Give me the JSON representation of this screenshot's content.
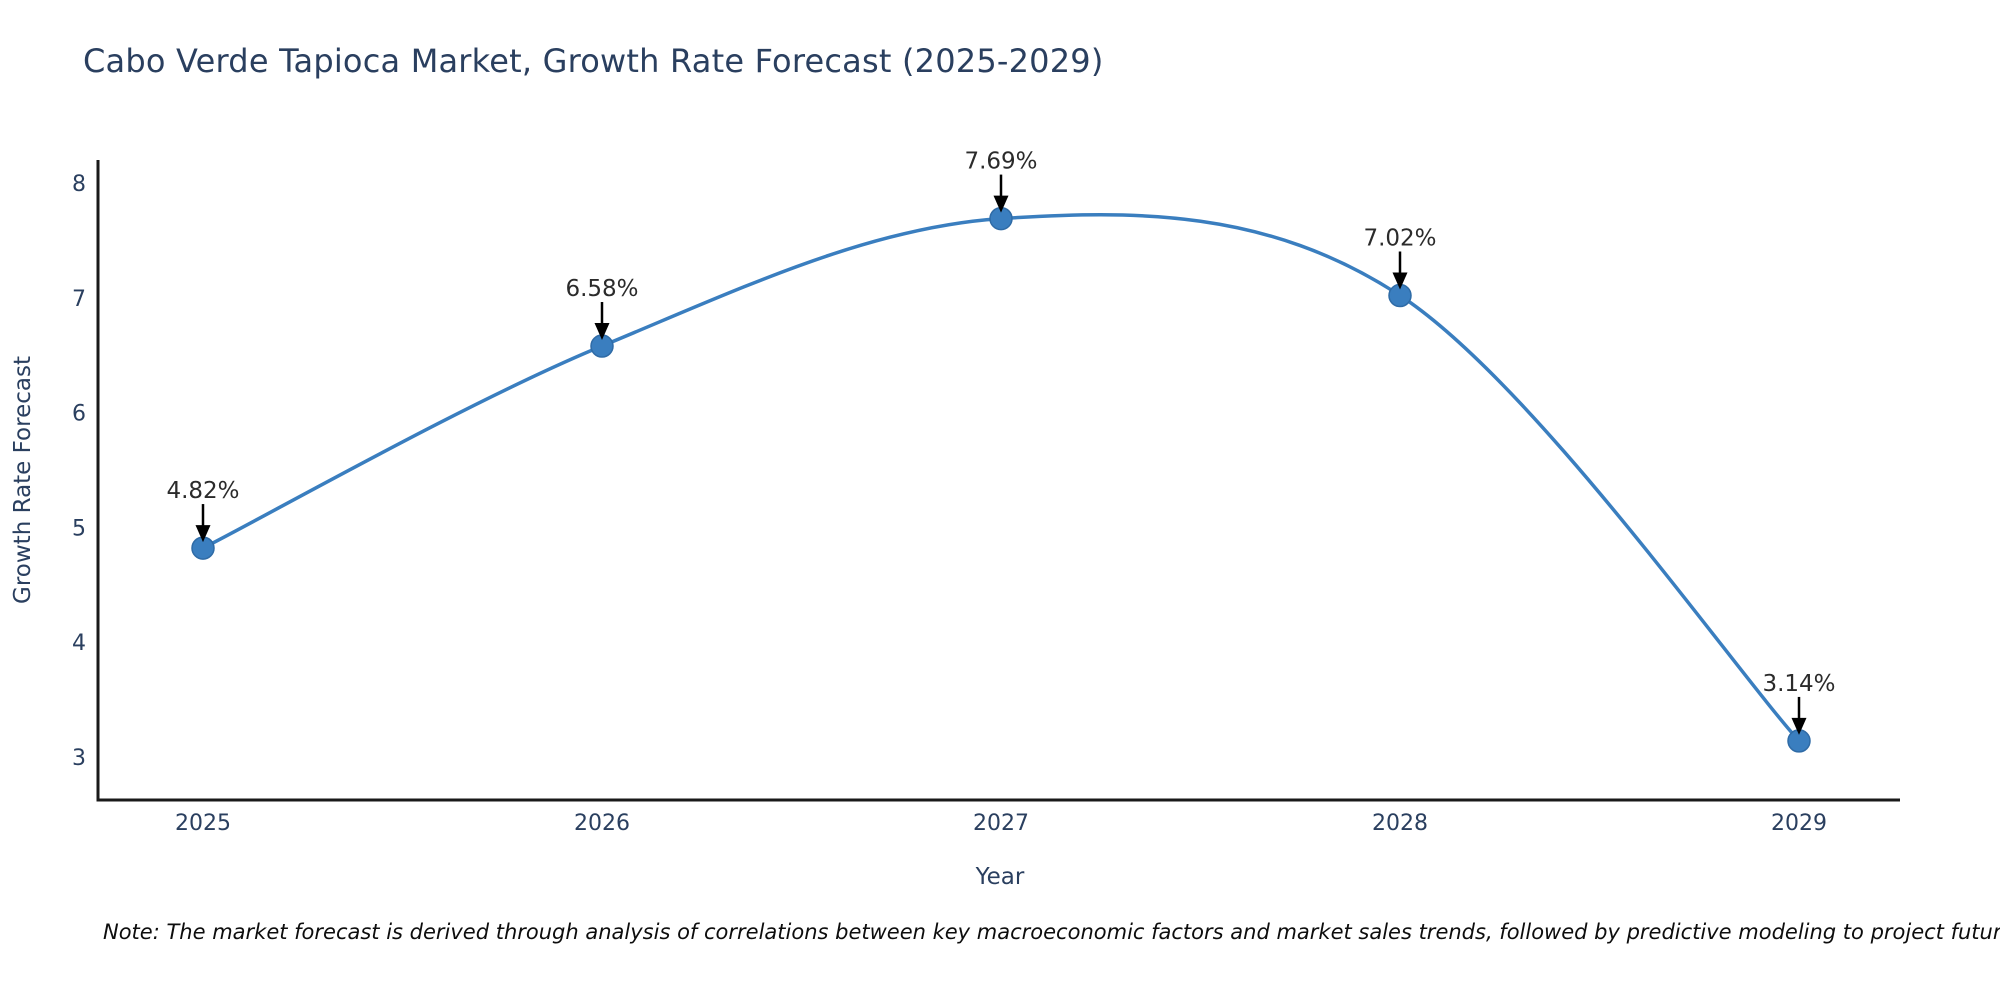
{
  "title": "Cabo Verde Tapioca Market, Growth Rate Forecast (2025-2029)",
  "note": "Note: The market forecast is derived through analysis of correlations between key macroeconomic factors and market sales trends, followed by predictive modeling to project future sales.",
  "colors": {
    "line": "#3a7ebf",
    "marker_fill": "#3a7ebf",
    "marker_edge": "#2f6ba6",
    "axis_line": "#1a1a1a",
    "tick_text": "#2a3f5f",
    "annotation_text": "#2b2b2b",
    "arrow": "#000000",
    "background": "#ffffff"
  },
  "chart_data": {
    "type": "line",
    "title": "Cabo Verde Tapioca Market, Growth Rate Forecast (2025-2029)",
    "categories": [
      "2025",
      "2026",
      "2027",
      "2028",
      "2029"
    ],
    "x": [
      2025,
      2026,
      2027,
      2028,
      2029
    ],
    "values": [
      4.82,
      6.58,
      7.69,
      7.02,
      3.14
    ],
    "point_labels": [
      "4.82%",
      "6.58%",
      "7.69%",
      "7.02%",
      "3.14%"
    ],
    "xlabel": "Year",
    "ylabel": "Growth Rate Forecast",
    "yticks": [
      8,
      7,
      6,
      5,
      4,
      3
    ],
    "ylim": [
      2.6,
      8.2
    ],
    "line_shape": "spline",
    "grid": false,
    "legend": false,
    "annotation_style": "arrow-down-to-point"
  }
}
